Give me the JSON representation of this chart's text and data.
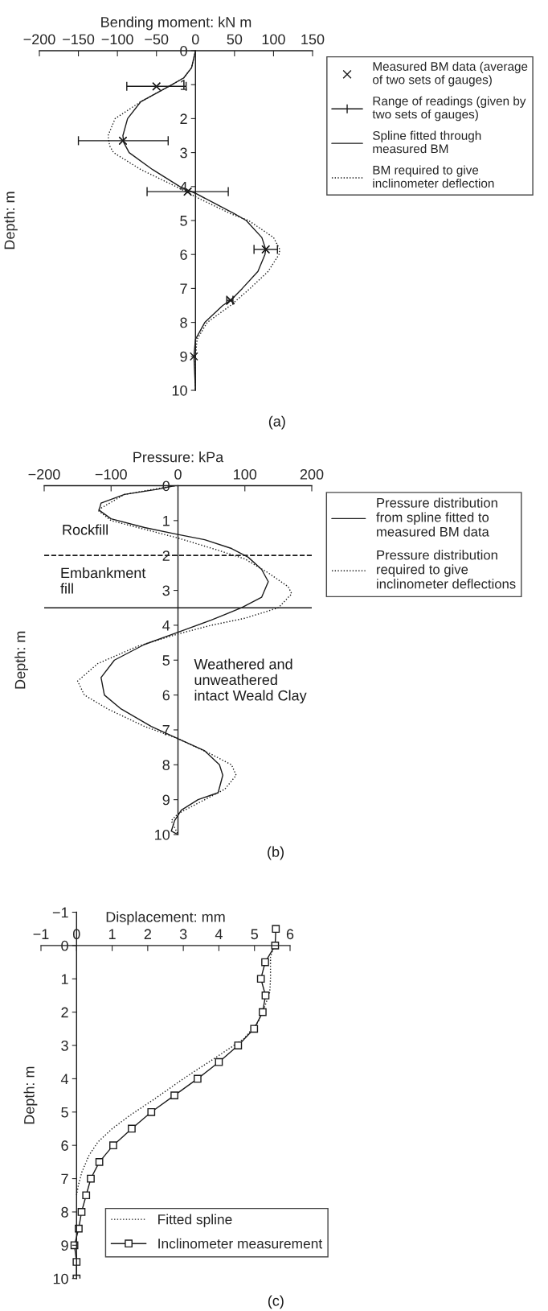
{
  "chart_data": [
    {
      "type": "line",
      "xlabel": "Bending moment: kN m",
      "ylabel": "Depth: m",
      "xlim": [
        -200,
        150
      ],
      "ylim": [
        10,
        0
      ],
      "xticks": [
        {
          "value": -200,
          "label": "−200"
        },
        {
          "value": -150,
          "label": "−150"
        },
        {
          "value": -100,
          "label": "−100"
        },
        {
          "value": -50,
          "label": "−50"
        },
        0,
        50,
        100,
        150
      ],
      "yticks": [
        0,
        1,
        2,
        3,
        4,
        5,
        6,
        7,
        8,
        9,
        10
      ],
      "legend": "right",
      "annotations": [
        "(a)"
      ],
      "series": [
        {
          "name": "Measured BM data (average\nof two sets of gauges)",
          "type": "scatter",
          "marker": "cross",
          "color": "#1a1a1a",
          "x": [
            -50,
            -93,
            -10,
            90,
            45,
            -2
          ],
          "values": [
            1.05,
            2.65,
            4.15,
            5.85,
            7.35,
            9.0
          ]
        },
        {
          "name": "Range of readings (given by\ntwo sets of gauges)",
          "type": "scatter",
          "marker": "cross",
          "color": "#1a1a1a",
          "x": [
            -50,
            -93,
            -10,
            90,
            45
          ],
          "values": [
            1.05,
            2.65,
            4.15,
            5.85,
            7.35
          ],
          "xerrors": [
            [
              -88,
              -12
            ],
            [
              -150,
              -35
            ],
            [
              -62,
              42
            ],
            [
              75,
              105
            ],
            [
              40,
              48
            ]
          ]
        },
        {
          "name": "Spline fitted through\nmeasured BM",
          "line_style": "solid",
          "marker": "none",
          "color": "#1a1a1a",
          "x": [
            0,
            -5,
            -15,
            -30,
            -70,
            -87,
            -93,
            -92,
            -85,
            -55,
            -20,
            0,
            25,
            50,
            65,
            85,
            90,
            89,
            80,
            60,
            45,
            35,
            12,
            0,
            -2,
            0
          ],
          "values": [
            0,
            0.5,
            0.8,
            1.0,
            1.5,
            2.0,
            2.5,
            2.7,
            3.0,
            3.5,
            4.0,
            4.2,
            4.5,
            4.8,
            5.0,
            5.5,
            5.85,
            6.0,
            6.5,
            7.0,
            7.35,
            7.5,
            8.0,
            8.5,
            9.0,
            10.0
          ]
        },
        {
          "name": "BM required to give\ninclinometer deflection",
          "line_style": "dotted",
          "marker": "none",
          "color": "#1a1a1a",
          "x": [
            0,
            -5,
            -15,
            -30,
            -70,
            -103,
            -112,
            -110,
            -105,
            -70,
            -25,
            0,
            45,
            68,
            100,
            108,
            107,
            93,
            70,
            45,
            15,
            2,
            0,
            0
          ],
          "values": [
            0,
            0.5,
            0.8,
            1.0,
            1.5,
            2.0,
            2.5,
            2.8,
            3.0,
            3.5,
            4.0,
            4.3,
            4.8,
            5.0,
            5.5,
            5.85,
            6.0,
            6.5,
            7.0,
            7.5,
            8.0,
            8.5,
            9.0,
            10.0
          ]
        }
      ]
    },
    {
      "type": "line",
      "xlabel": "Pressure: kPa",
      "ylabel": "Depth: m",
      "xlim": [
        -200,
        200
      ],
      "ylim": [
        10,
        0
      ],
      "xticks": [
        {
          "value": -200,
          "label": "−200"
        },
        {
          "value": -100,
          "label": "−100"
        },
        0,
        100,
        200
      ],
      "yticks": [
        0,
        1,
        2,
        3,
        4,
        5,
        6,
        7,
        8,
        9,
        10
      ],
      "legend": "right",
      "annotations": [
        "Rockfill",
        "Embankment\nfill",
        "Weathered and\nunweathered\nintact Weald Clay",
        "(b)"
      ],
      "ref_lines": [
        {
          "axis": "y",
          "value": 2,
          "line_style": "dashed",
          "color": "#1a1a1a"
        },
        {
          "axis": "y",
          "value": 3.5,
          "line_style": "solid",
          "color": "#1a1a1a"
        }
      ],
      "series": [
        {
          "name": "Pressure distribution\nfrom spline fitted to\nmeasured BM data",
          "line_style": "solid",
          "marker": "none",
          "color": "#1a1a1a",
          "x": [
            -5,
            -30,
            -80,
            -115,
            -118,
            -100,
            -50,
            0,
            40,
            80,
            105,
            125,
            135,
            125,
            95,
            50,
            0,
            -50,
            -95,
            -115,
            -110,
            -85,
            -40,
            0,
            40,
            62,
            67,
            60,
            30,
            5,
            -5,
            -10,
            0
          ],
          "values": [
            0,
            0.1,
            0.25,
            0.5,
            0.7,
            0.95,
            1.2,
            1.4,
            1.55,
            1.8,
            2.05,
            2.4,
            2.75,
            3.2,
            3.5,
            3.85,
            4.2,
            4.55,
            5.0,
            5.5,
            6.0,
            6.4,
            6.9,
            7.25,
            7.6,
            8.0,
            8.3,
            8.8,
            9.0,
            9.3,
            9.6,
            9.9,
            10.0
          ]
        },
        {
          "name": "Pressure distribution\nrequired to give\ninclinometer deflections",
          "line_style": "dotted",
          "marker": "none",
          "color": "#1a1a1a",
          "x": [
            -5,
            -80,
            -120,
            -100,
            -50,
            0,
            60,
            100,
            135,
            165,
            170,
            150,
            100,
            50,
            0,
            -60,
            -120,
            -150,
            -140,
            -105,
            -50,
            0,
            50,
            80,
            87,
            70,
            30,
            0,
            -10,
            0
          ],
          "values": [
            0,
            0.25,
            0.7,
            1.0,
            1.25,
            1.5,
            1.85,
            2.1,
            2.5,
            2.9,
            3.1,
            3.5,
            3.8,
            4.0,
            4.25,
            4.6,
            5.1,
            5.6,
            6.0,
            6.4,
            6.9,
            7.25,
            7.7,
            8.0,
            8.3,
            8.7,
            9.1,
            9.4,
            9.6,
            10.0
          ]
        }
      ]
    },
    {
      "type": "line",
      "xlabel": "Displacement: mm",
      "ylabel": "Depth: m",
      "xlim": [
        -1,
        6
      ],
      "ylim": [
        10,
        -1
      ],
      "xticks": [
        {
          "value": -1,
          "label": "−1"
        },
        0,
        1,
        2,
        3,
        4,
        5,
        6
      ],
      "yticks": [
        {
          "value": -1,
          "label": "−1"
        },
        0,
        1,
        2,
        3,
        4,
        5,
        6,
        7,
        8,
        9,
        10
      ],
      "legend": "bottom right",
      "annotations": [
        "(c)"
      ],
      "series": [
        {
          "name": "Fitted spline",
          "line_style": "dotted",
          "marker": "none",
          "color": "#1a1a1a",
          "x": [
            5.55,
            5.45,
            5.45,
            5.43,
            5.3,
            5.1,
            4.7,
            4.0,
            3.0,
            2.2,
            1.5,
            1.0,
            0.6,
            0.35,
            0.15,
            0.05,
            0
          ],
          "values": [
            0,
            0.35,
            1.0,
            1.4,
            1.8,
            2.3,
            2.8,
            3.3,
            4.0,
            4.6,
            5.1,
            5.5,
            5.9,
            6.3,
            6.8,
            7.2,
            7.5
          ]
        },
        {
          "name": "Inclinometer measurement",
          "line_style": "solid",
          "marker": "square",
          "color": "#1a1a1a",
          "x": [
            5.6,
            5.58,
            5.3,
            5.18,
            5.31,
            5.23,
            4.99,
            4.54,
            4.0,
            3.4,
            2.75,
            2.1,
            1.55,
            1.03,
            0.64,
            0.4,
            0.27,
            0.14,
            0.06,
            -0.06,
            0.0,
            0.0
          ],
          "values": [
            -0.5,
            0,
            0.5,
            1.0,
            1.5,
            2.0,
            2.5,
            3.0,
            3.5,
            4.0,
            4.5,
            5.0,
            5.5,
            6.0,
            6.5,
            7.0,
            7.5,
            8.0,
            8.5,
            9.0,
            9.5,
            10.0
          ]
        }
      ]
    }
  ]
}
